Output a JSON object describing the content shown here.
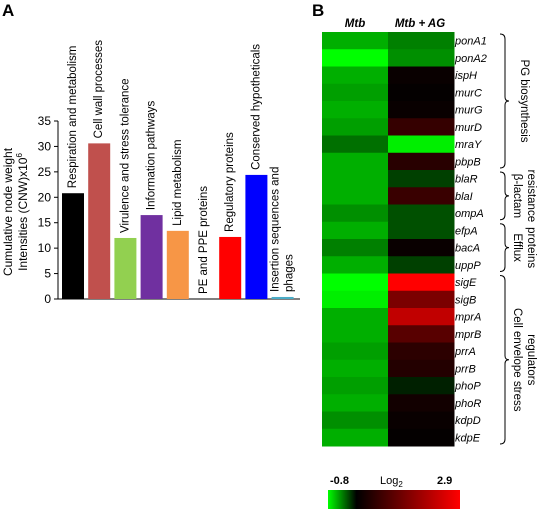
{
  "chart_data": [
    {
      "panel": "A",
      "type": "bar",
      "ylabel_line1": "Cumulative node weight",
      "ylabel_line2_text": "Intensities (CNW)x10",
      "ylabel_line2_sup": "6",
      "ylim": [
        0,
        35
      ],
      "yticks": [
        "0",
        "5",
        "10",
        "15",
        "20",
        "25",
        "30",
        "35"
      ],
      "categories": [
        "Respiration and metabolism",
        "Cell wall processes",
        "Virulence and stress tolerance",
        "Information pathways",
        "Lipid metabolism",
        "PE and PPE proteins",
        "Regulatory proteins",
        "Conserved hypotheticals",
        "Insertion sequences and phages"
      ],
      "label_lines": [
        [
          "Respiration and metabolism"
        ],
        [
          "Cell wall processes"
        ],
        [
          "Virulence and stress tolerance"
        ],
        [
          "Information pathways"
        ],
        [
          "Lipid metabolism"
        ],
        [
          "PE and PPE proteins"
        ],
        [
          "Regulatory proteins"
        ],
        [
          "Conserved hypotheticals"
        ],
        [
          "Insertion sequences and",
          "phages"
        ]
      ],
      "values": [
        20.8,
        30.6,
        12.0,
        16.5,
        13.4,
        0.0,
        12.2,
        24.4,
        0.4
      ],
      "colors": [
        "#000000",
        "#c0504d",
        "#92d050",
        "#7030a0",
        "#f79646",
        "#ffffff",
        "#ff0000",
        "#0000ff",
        "#4bacc6"
      ]
    },
    {
      "panel": "B",
      "type": "heatmap",
      "columns": [
        "Mtb",
        "Mtb + AG"
      ],
      "genes": [
        "ponA1",
        "ponA2",
        "ispH",
        "murC",
        "murG",
        "murD",
        "mraY",
        "pbpB",
        "blaR",
        "blaI",
        "ompA",
        "efpA",
        "bacA",
        "uppP",
        "sigE",
        "sigB",
        "mprA",
        "mprB",
        "prrA",
        "prrB",
        "phoP",
        "phoR",
        "kdpD",
        "kdpE"
      ],
      "values": [
        [
          -0.55,
          -0.4
        ],
        [
          -0.8,
          -0.45
        ],
        [
          -0.55,
          0.1
        ],
        [
          -0.5,
          0.05
        ],
        [
          -0.55,
          0.1
        ],
        [
          -0.5,
          0.6
        ],
        [
          -0.35,
          -0.75
        ],
        [
          -0.55,
          0.45
        ],
        [
          -0.55,
          -0.2
        ],
        [
          -0.55,
          0.65
        ],
        [
          -0.45,
          -0.25
        ],
        [
          -0.55,
          -0.25
        ],
        [
          -0.4,
          0.1
        ],
        [
          -0.55,
          -0.2
        ],
        [
          -0.8,
          2.9
        ],
        [
          -0.75,
          1.4
        ],
        [
          -0.55,
          2.2
        ],
        [
          -0.55,
          1.0
        ],
        [
          -0.5,
          0.5
        ],
        [
          -0.55,
          0.4
        ],
        [
          -0.5,
          -0.1
        ],
        [
          -0.55,
          0.2
        ],
        [
          -0.45,
          0.1
        ],
        [
          -0.55,
          0.05
        ]
      ],
      "groups": [
        {
          "label_lines": [
            "PG biosynthesis"
          ],
          "start": 0,
          "end": 7
        },
        {
          "label_lines": [
            "β-lactam",
            "resistance"
          ],
          "start": 8,
          "end": 10
        },
        {
          "label_lines": [
            "Efflux",
            "proteins"
          ],
          "start": 11,
          "end": 13
        },
        {
          "label_lines": [
            "Cell envelope stress",
            "regulators"
          ],
          "start": 14,
          "end": 23
        }
      ],
      "scale": {
        "min": -0.8,
        "max": 2.9,
        "min_label": "-0.8",
        "max_label": "2.9",
        "label_text": "Log",
        "label_sub": "2",
        "colors": [
          "#00ff00",
          "#000000",
          "#ff0000"
        ]
      }
    }
  ],
  "panel_labels": [
    "A",
    "B"
  ]
}
